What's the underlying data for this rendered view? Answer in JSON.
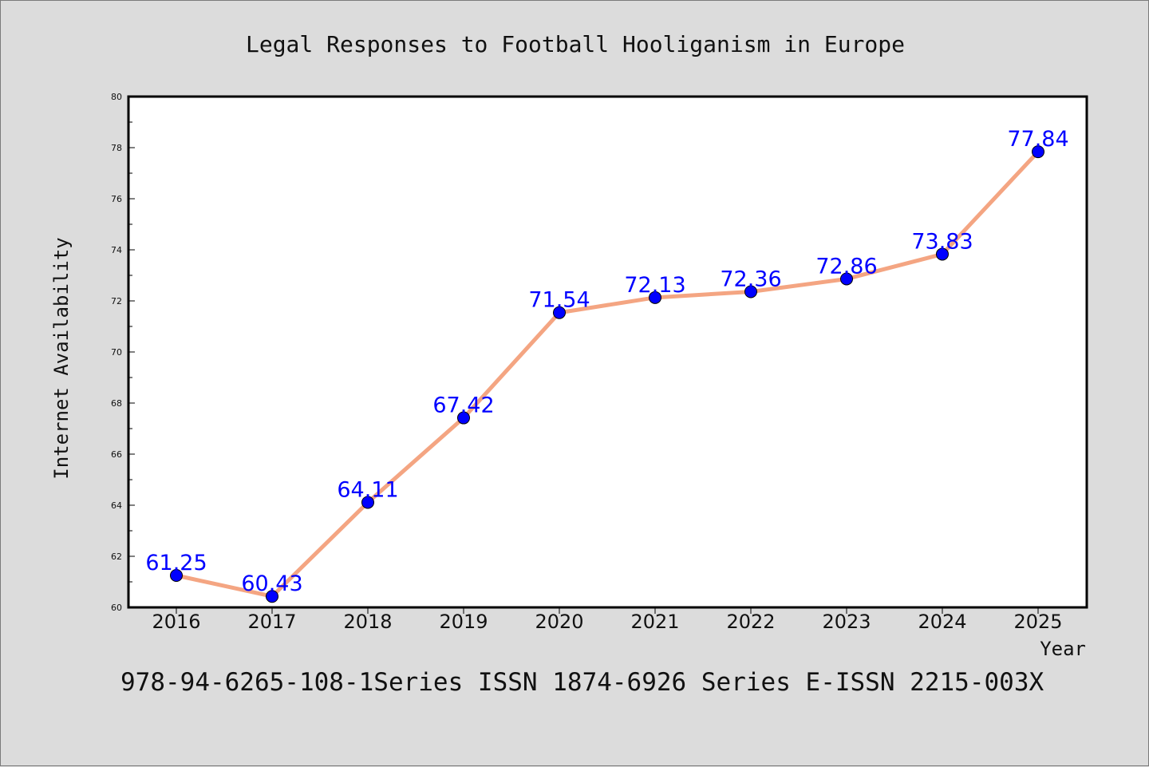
{
  "chart_data": {
    "type": "line",
    "title": "Legal Responses to Football Hooliganism in Europe",
    "xlabel": "Year",
    "ylabel": "Internet Availability",
    "categories": [
      "2016",
      "2017",
      "2018",
      "2019",
      "2020",
      "2021",
      "2022",
      "2023",
      "2024",
      "2025"
    ],
    "series": [
      {
        "values": [
          61.25,
          60.43,
          64.11,
          67.42,
          71.54,
          72.13,
          72.36,
          72.86,
          73.83,
          77.84
        ]
      }
    ],
    "data_labels": [
      "61.25",
      "60.43",
      "64.11",
      "67.42",
      "71.54",
      "72.13",
      "72.36",
      "72.86",
      "73.83",
      "77.84"
    ],
    "ylim": [
      60,
      80
    ],
    "y_ticks": [
      "60",
      "62",
      "64",
      "66",
      "68",
      "70",
      "72",
      "74",
      "76",
      "78",
      "80"
    ],
    "grid": false,
    "legend": "none",
    "colors": {
      "line": "#f4a582",
      "marker": "#0000ff",
      "label": "#0000ff",
      "background": "#dcdcdc",
      "plot_background": "#ffffff"
    }
  },
  "caption": "978-94-6265-108-1Series ISSN 1874-6926 Series E-ISSN 2215-003X"
}
